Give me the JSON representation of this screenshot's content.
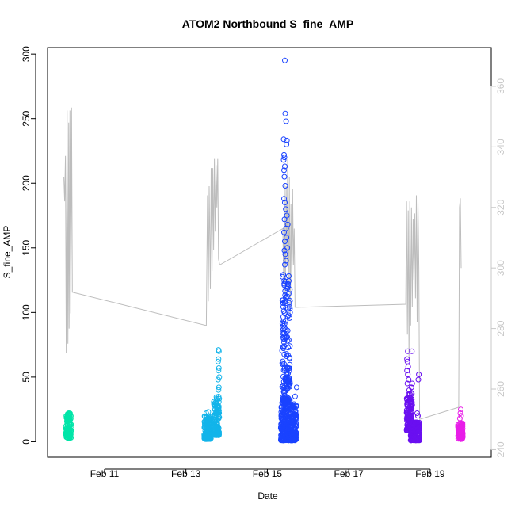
{
  "chart_data": {
    "type": "scatter",
    "title": "ATOM2 Northbound S_fine_AMP",
    "xlabel": "Date",
    "ylabel": "S_fine_AMP",
    "x_ticks": [
      {
        "label": "Feb 11",
        "value": 11
      },
      {
        "label": "Feb 13",
        "value": 13
      },
      {
        "label": "Feb 15",
        "value": 15
      },
      {
        "label": "Feb 17",
        "value": 17
      },
      {
        "label": "Feb 19",
        "value": 19
      }
    ],
    "y_ticks": [
      0,
      50,
      100,
      150,
      200,
      250,
      300
    ],
    "y2_ticks": [
      240,
      260,
      280,
      300,
      320,
      340,
      360
    ],
    "xlim": [
      9.6,
      20.5
    ],
    "ylim": [
      -12,
      305
    ],
    "y2lim": [
      237.5,
      372.8
    ],
    "grid": false,
    "legend": "none",
    "colors": {
      "overlay_line": "#bdbdbd",
      "secondary_axis": "#c8c8c8",
      "axis": "#000000"
    },
    "series": [
      {
        "color": "#00e5a8",
        "clusters": [
          {
            "x_start": 10.05,
            "x_end": 10.18,
            "y_min": 3,
            "y_max": 22
          }
        ],
        "outliers": [
          {
            "x": 10.12,
            "y": 22
          },
          {
            "x": 10.15,
            "y": 21
          },
          {
            "x": 10.08,
            "y": 18
          }
        ]
      },
      {
        "color": "#12b4ea",
        "clusters": [
          {
            "x_start": 13.45,
            "x_end": 13.62,
            "y_min": 2,
            "y_max": 20
          },
          {
            "x_start": 13.68,
            "x_end": 13.82,
            "y_min": 5,
            "y_max": 35
          }
        ],
        "outliers": [
          {
            "x": 13.8,
            "y": 71
          },
          {
            "x": 13.81,
            "y": 70
          },
          {
            "x": 13.8,
            "y": 64
          },
          {
            "x": 13.79,
            "y": 62
          },
          {
            "x": 13.81,
            "y": 57
          },
          {
            "x": 13.8,
            "y": 55
          },
          {
            "x": 13.82,
            "y": 50
          },
          {
            "x": 13.79,
            "y": 48
          },
          {
            "x": 13.81,
            "y": 42
          },
          {
            "x": 13.8,
            "y": 40
          },
          {
            "x": 13.5,
            "y": 22
          },
          {
            "x": 13.55,
            "y": 23
          }
        ]
      },
      {
        "color": "#1a43ff",
        "clusters": [
          {
            "x_start": 15.33,
            "x_end": 15.72,
            "y_min": 1,
            "y_max": 30
          },
          {
            "x_start": 15.36,
            "x_end": 15.56,
            "y_min": 30,
            "y_max": 130
          }
        ],
        "outliers": [
          {
            "x": 15.43,
            "y": 295
          },
          {
            "x": 15.44,
            "y": 254
          },
          {
            "x": 15.46,
            "y": 248
          },
          {
            "x": 15.4,
            "y": 234
          },
          {
            "x": 15.48,
            "y": 233
          },
          {
            "x": 15.47,
            "y": 230
          },
          {
            "x": 15.41,
            "y": 222
          },
          {
            "x": 15.42,
            "y": 220
          },
          {
            "x": 15.4,
            "y": 218
          },
          {
            "x": 15.43,
            "y": 213
          },
          {
            "x": 15.41,
            "y": 210
          },
          {
            "x": 15.42,
            "y": 205
          },
          {
            "x": 15.44,
            "y": 198
          },
          {
            "x": 15.41,
            "y": 188
          },
          {
            "x": 15.43,
            "y": 185
          },
          {
            "x": 15.45,
            "y": 180
          },
          {
            "x": 15.48,
            "y": 175
          },
          {
            "x": 15.42,
            "y": 172
          },
          {
            "x": 15.5,
            "y": 168
          },
          {
            "x": 15.46,
            "y": 165
          },
          {
            "x": 15.41,
            "y": 162
          },
          {
            "x": 15.47,
            "y": 158
          },
          {
            "x": 15.43,
            "y": 155
          },
          {
            "x": 15.49,
            "y": 150
          },
          {
            "x": 15.42,
            "y": 148
          },
          {
            "x": 15.44,
            "y": 145
          },
          {
            "x": 15.46,
            "y": 140
          },
          {
            "x": 15.43,
            "y": 137
          },
          {
            "x": 15.72,
            "y": 42
          },
          {
            "x": 15.68,
            "y": 35
          }
        ]
      },
      {
        "color": "#6a10f0",
        "clusters": [
          {
            "x_start": 18.42,
            "x_end": 18.56,
            "y_min": 8,
            "y_max": 40
          },
          {
            "x_start": 18.52,
            "x_end": 18.74,
            "y_min": 1,
            "y_max": 15
          }
        ],
        "outliers": [
          {
            "x": 18.45,
            "y": 70
          },
          {
            "x": 18.43,
            "y": 64
          },
          {
            "x": 18.44,
            "y": 62
          },
          {
            "x": 18.46,
            "y": 58
          },
          {
            "x": 18.43,
            "y": 55
          },
          {
            "x": 18.45,
            "y": 52
          },
          {
            "x": 18.47,
            "y": 48
          },
          {
            "x": 18.44,
            "y": 45
          },
          {
            "x": 18.55,
            "y": 70
          },
          {
            "x": 18.56,
            "y": 45
          },
          {
            "x": 18.54,
            "y": 42
          },
          {
            "x": 18.72,
            "y": 52
          },
          {
            "x": 18.71,
            "y": 48
          },
          {
            "x": 18.7,
            "y": 20
          },
          {
            "x": 18.68,
            "y": 22
          }
        ]
      },
      {
        "color": "#e81ee8",
        "clusters": [
          {
            "x_start": 19.68,
            "x_end": 19.8,
            "y_min": 2,
            "y_max": 15
          }
        ],
        "outliers": [
          {
            "x": 19.75,
            "y": 25
          },
          {
            "x": 19.74,
            "y": 22
          },
          {
            "x": 19.76,
            "y": 20
          },
          {
            "x": 19.73,
            "y": 18
          }
        ]
      }
    ],
    "overlay_line": {
      "axis": "right",
      "points": [
        [
          10.0,
          330
        ],
        [
          10.02,
          322
        ],
        [
          10.04,
          337
        ],
        [
          10.06,
          272
        ],
        [
          10.08,
          352
        ],
        [
          10.1,
          275
        ],
        [
          10.12,
          348
        ],
        [
          10.13,
          280
        ],
        [
          10.15,
          352
        ],
        [
          10.17,
          285
        ],
        [
          10.19,
          353
        ],
        [
          10.21,
          292
        ],
        [
          13.5,
          281
        ],
        [
          13.53,
          324
        ],
        [
          13.55,
          289
        ],
        [
          13.57,
          327
        ],
        [
          13.6,
          293
        ],
        [
          13.62,
          333
        ],
        [
          13.64,
          299
        ],
        [
          13.66,
          333
        ],
        [
          13.68,
          306
        ],
        [
          13.7,
          336
        ],
        [
          13.72,
          312
        ],
        [
          13.74,
          334
        ],
        [
          13.76,
          320
        ],
        [
          13.78,
          336
        ],
        [
          13.8,
          303
        ],
        [
          13.83,
          301
        ],
        [
          15.38,
          313
        ],
        [
          15.4,
          296
        ],
        [
          15.42,
          328
        ],
        [
          15.44,
          287
        ],
        [
          15.46,
          327
        ],
        [
          15.48,
          301
        ],
        [
          15.5,
          336
        ],
        [
          15.52,
          292
        ],
        [
          15.54,
          330
        ],
        [
          15.56,
          284
        ],
        [
          15.58,
          321
        ],
        [
          15.6,
          292
        ],
        [
          15.62,
          326
        ],
        [
          15.64,
          301
        ],
        [
          15.66,
          313
        ],
        [
          15.68,
          287
        ],
        [
          15.72,
          287
        ],
        [
          18.4,
          288
        ],
        [
          18.42,
          322
        ],
        [
          18.44,
          278
        ],
        [
          18.46,
          319
        ],
        [
          18.48,
          270
        ],
        [
          18.5,
          322
        ],
        [
          18.52,
          281
        ],
        [
          18.54,
          320
        ],
        [
          18.56,
          287
        ],
        [
          18.58,
          316
        ],
        [
          18.6,
          296
        ],
        [
          18.62,
          318
        ],
        [
          18.64,
          290
        ],
        [
          18.66,
          324
        ],
        [
          18.68,
          282
        ],
        [
          18.7,
          322
        ],
        [
          18.72,
          300
        ],
        [
          18.74,
          250
        ],
        [
          19.7,
          254
        ],
        [
          19.72,
          320
        ],
        [
          19.74,
          323
        ],
        [
          19.76,
          300
        ]
      ]
    }
  }
}
